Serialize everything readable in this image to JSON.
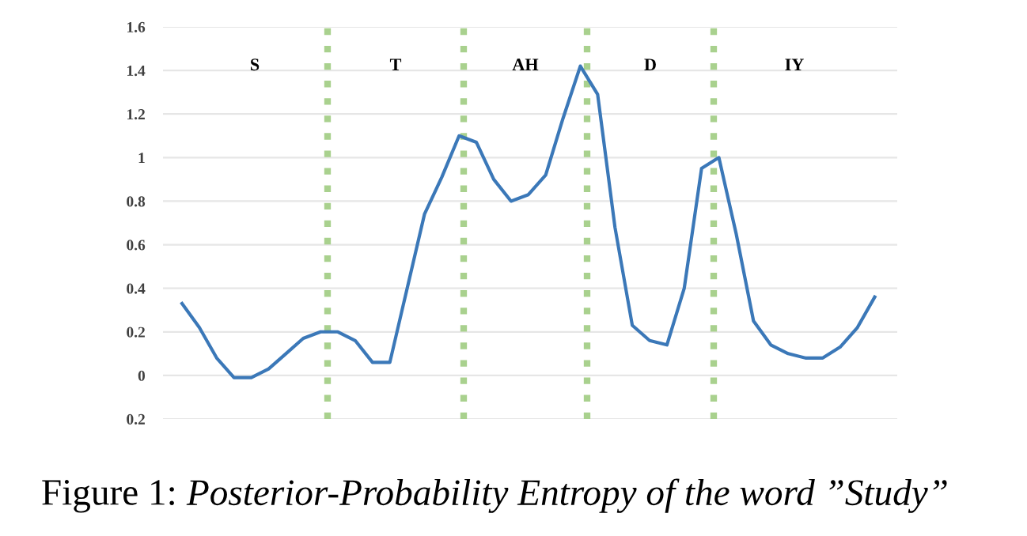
{
  "chart_data": {
    "type": "line",
    "categories": [
      null,
      null,
      null,
      null,
      null,
      null,
      null,
      null,
      null,
      null,
      null,
      null,
      null,
      null,
      null,
      null,
      null,
      null,
      null,
      null,
      null,
      null,
      null,
      null,
      null,
      null,
      null,
      null,
      null,
      null,
      null,
      null,
      null,
      null,
      null,
      null,
      null,
      null,
      null,
      null,
      null
    ],
    "series": [
      {
        "color": "#3b78b8",
        "values": [
          0.33,
          0.22,
          0.08,
          -0.01,
          -0.01,
          0.03,
          0.1,
          0.17,
          0.2,
          0.2,
          0.16,
          0.06,
          0.06,
          0.4,
          0.74,
          0.91,
          1.1,
          1.07,
          0.9,
          0.8,
          0.83,
          0.92,
          1.18,
          1.42,
          1.29,
          0.68,
          0.23,
          0.16,
          0.14,
          0.4,
          0.95,
          1.0,
          0.65,
          0.25,
          0.14,
          0.1,
          0.08,
          0.08,
          0.13,
          0.22,
          0.36
        ]
      }
    ],
    "ylim": [
      -0.2,
      1.6
    ],
    "yticks": [
      {
        "value": -0.2,
        "label": "0.2"
      },
      0,
      0.2,
      0.4,
      0.6,
      0.8,
      1,
      1.2,
      1.4,
      1.6
    ],
    "grid": "y",
    "tick_labels": "y",
    "marker": "none",
    "line_style": "solid",
    "annotations": [
      "S",
      "T",
      "AH",
      "D",
      "IY",
      "Figure 1: Posterior-Probability Entropy of the word ”Study”"
    ]
  }
}
